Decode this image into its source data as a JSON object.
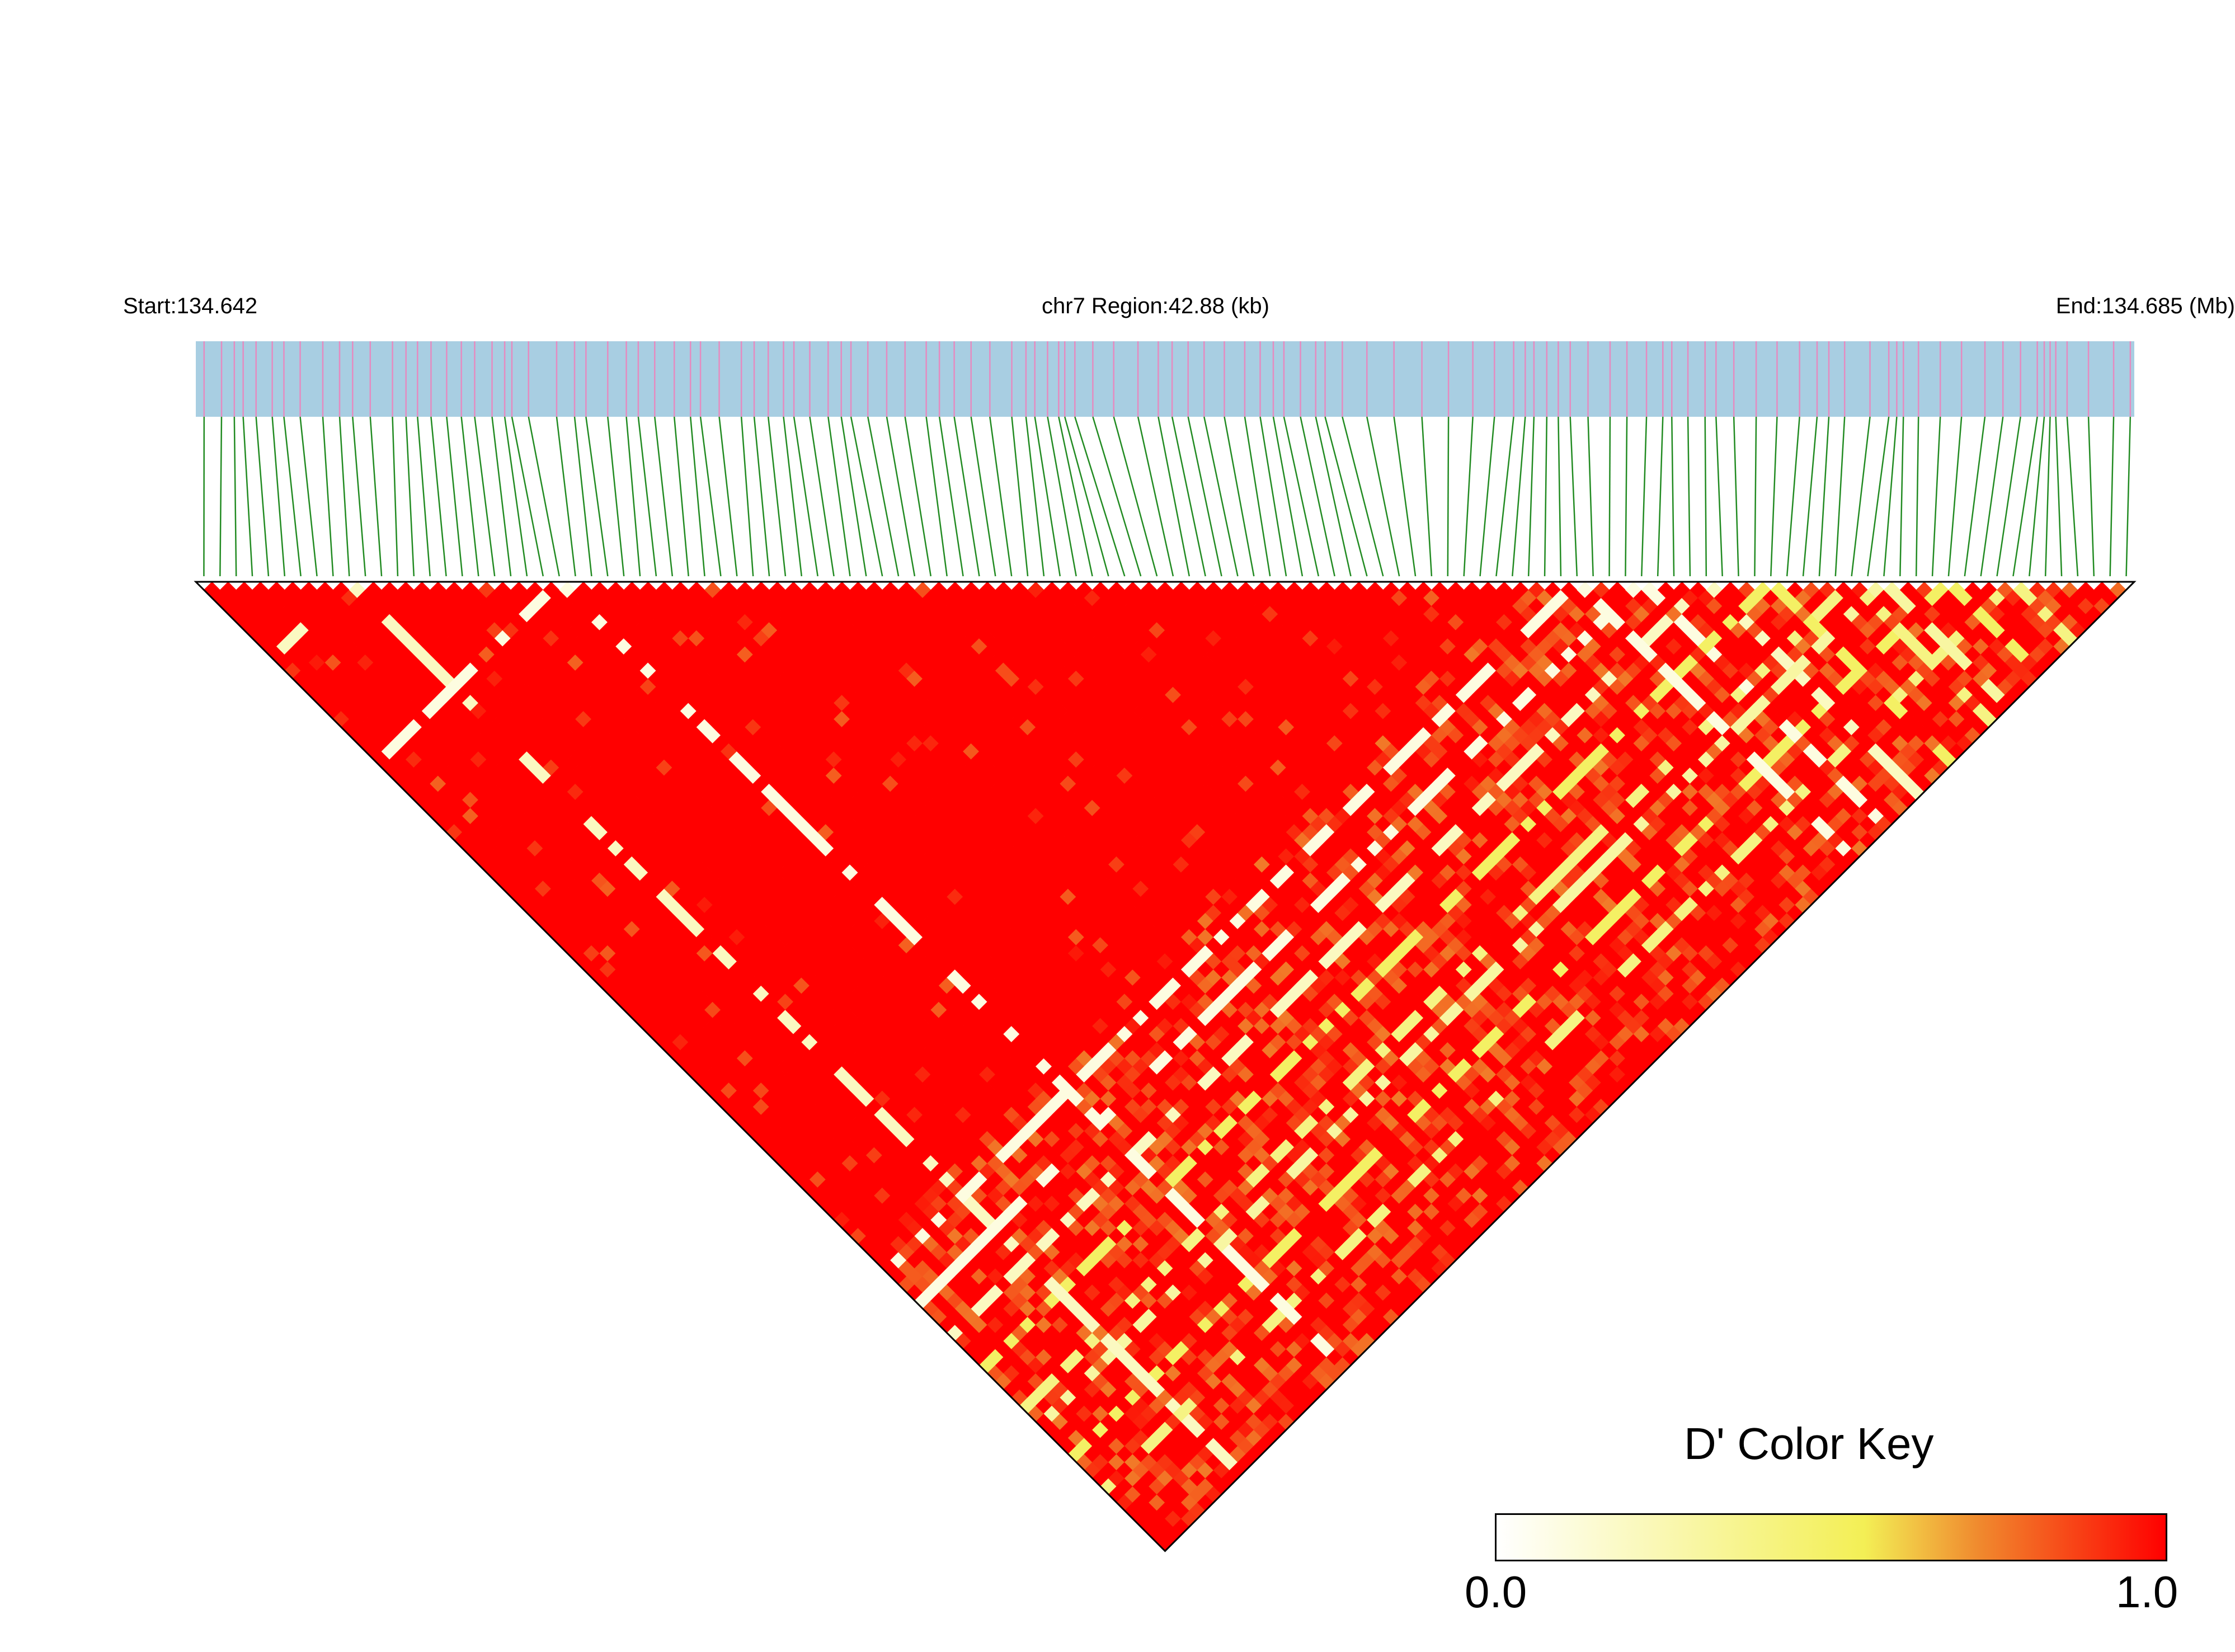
{
  "chart_data": {
    "type": "heatmap",
    "subtype": "linkage disequilibrium (D') heatmap",
    "header": {
      "start_label": "Start:134.642",
      "region_label": "chr7 Region:42.88 (kb)",
      "end_label": "End:134.685 (Mb)"
    },
    "chromosome": "chr7",
    "region_start_mb": 134.642,
    "region_end_mb": 134.685,
    "region_length_kb": 42.88,
    "snp_count": 120,
    "value_range": [
      0.0,
      1.0
    ],
    "predominant_value": 1.0,
    "low_value_bands": [
      {
        "snp_index": 22,
        "value": 0.1
      },
      {
        "snp_index": 9,
        "value": 0.2
      },
      {
        "snp_index": 85,
        "value": 0.1
      },
      {
        "snp_index": 89,
        "value": 0.1
      },
      {
        "snp_index": 93,
        "value": 0.2
      },
      {
        "snp_index": 97,
        "value": 0.5
      },
      {
        "snp_index": 102,
        "value": 0.4
      },
      {
        "snp_index": 104,
        "value": 0.3
      },
      {
        "snp_index": 108,
        "value": 0.5
      },
      {
        "snp_index": 112,
        "value": 0.4
      }
    ],
    "color_key": {
      "title": "D' Color Key",
      "min_label": "0.0",
      "max_label": "1.0",
      "colors": [
        "#ffffff",
        "#f3ef55",
        "#f08a2e",
        "#ff0000"
      ]
    },
    "colors": {
      "gene_track": "#a8cee2",
      "snp_marks": "#e58bc0",
      "connector_lines": "#228b22",
      "high_ld": "#ff0000"
    }
  }
}
